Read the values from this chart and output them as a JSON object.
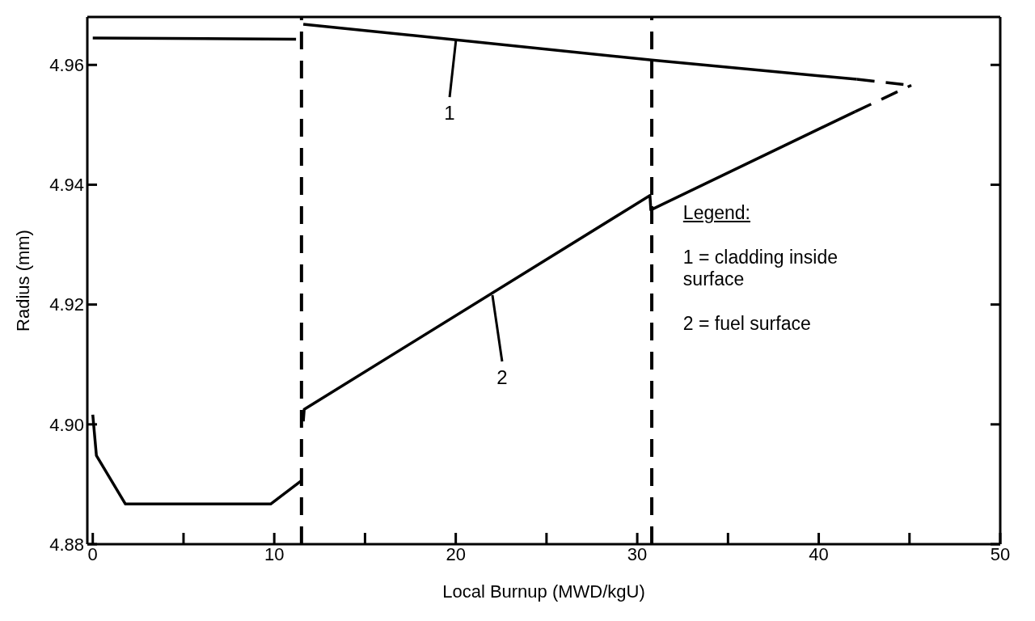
{
  "chart_data": {
    "type": "line",
    "xlabel": "Local Burnup (MWD/kgU)",
    "ylabel": "Radius (mm)",
    "xlim": [
      -0.3,
      50
    ],
    "xticks": [
      0,
      {
        "value": 5,
        "label": null
      },
      10,
      {
        "value": 15,
        "label": null
      },
      20,
      {
        "value": 25,
        "label": null
      },
      30,
      {
        "value": 35,
        "label": null
      },
      40,
      {
        "value": 45,
        "label": null
      },
      50
    ],
    "ylim": [
      4.88,
      4.968
    ],
    "yticks": [
      4.88,
      {
        "value": 4.9,
        "label": "4.90"
      },
      4.92,
      4.94,
      4.96
    ],
    "series": [
      {
        "color": "#000000",
        "x": [
          0,
          11.2,
          11.4,
          11.6,
          30.8,
          42.1
        ],
        "values": [
          4.9645,
          4.9643,
          null,
          4.9668,
          4.9608,
          4.9576
        ]
      },
      {
        "color": "#000000",
        "x": [
          0,
          0.2,
          1.8,
          9.8,
          11.5,
          11.55,
          11.6,
          11.65,
          30.7,
          30.75,
          42.0
        ],
        "values": [
          4.9016,
          4.8948,
          4.8867,
          4.8867,
          4.8906,
          null,
          4.9005,
          4.9025,
          4.9382,
          4.9358,
          4.9522
        ]
      },
      {
        "color": "#000000",
        "line_style": "dashed",
        "x": [
          42.1,
          45.1
        ],
        "values": [
          4.9576,
          4.9566
        ]
      },
      {
        "color": "#000000",
        "line_style": "dashed",
        "x": [
          42.0,
          45.1
        ],
        "values": [
          4.9522,
          4.9566
        ]
      }
    ],
    "ref_lines": [
      {
        "axis": "x",
        "value": 11.5,
        "color": "#000000",
        "line_style": "dashed"
      },
      {
        "axis": "x",
        "value": 30.8,
        "color": "#000000",
        "line_style": "dashed"
      }
    ],
    "annotations": [
      {
        "text": "1",
        "x": 20,
        "y": 4.9642
      },
      {
        "text": "2",
        "x": 22,
        "y": 4.9215
      },
      "Legend:",
      "1 = cladding inside surface",
      "2 = fuel surface"
    ],
    "grid": false,
    "legend": false,
    "marker": "none",
    "line_style": "solid"
  }
}
